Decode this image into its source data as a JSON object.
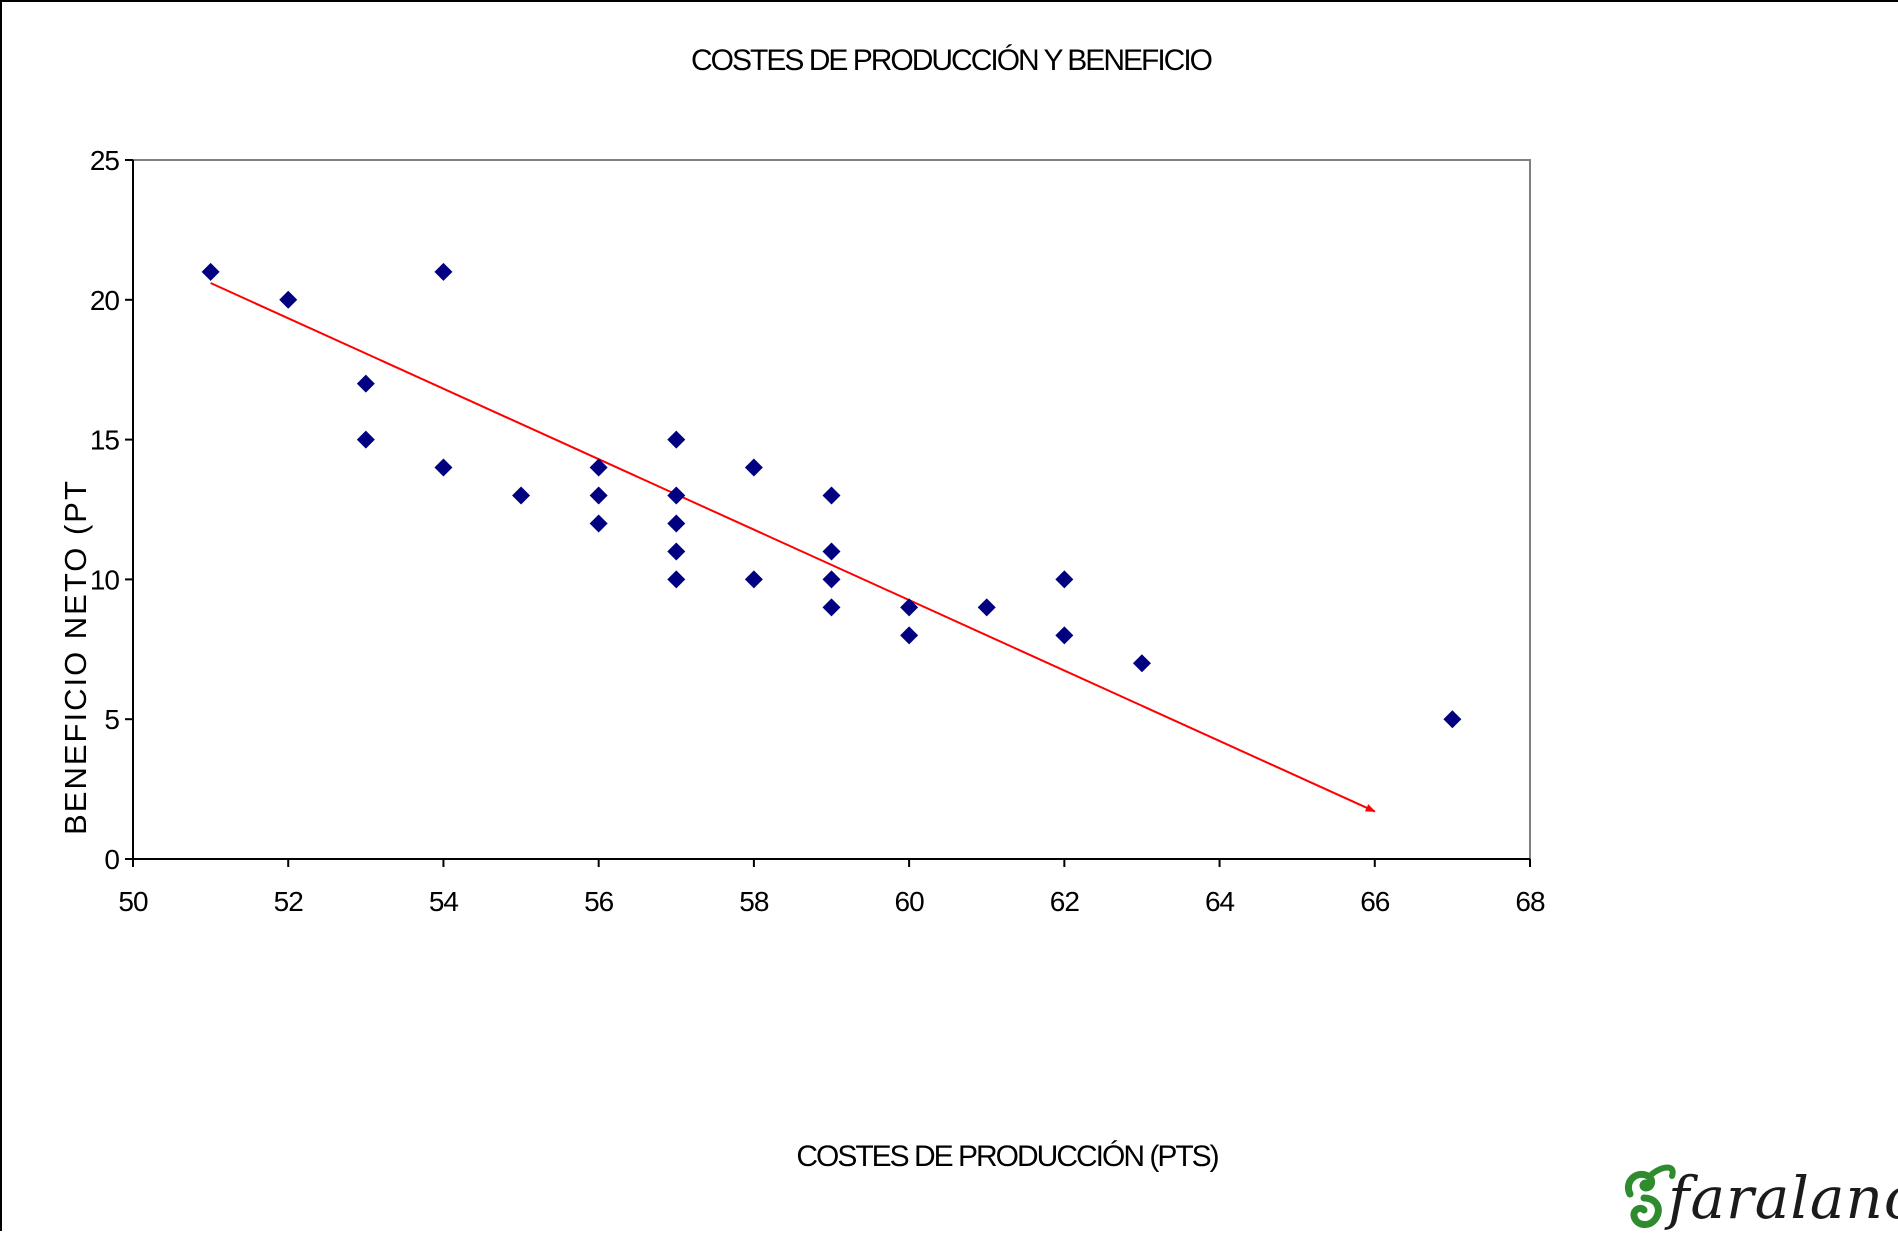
{
  "chart_data": {
    "type": "scatter",
    "title": "COSTES DE PRODUCCIÓN Y BENEFICIO",
    "xlabel": "COSTES DE PRODUCCIÓN (PTS)",
    "ylabel": "BENEFICIO NETO (PT",
    "xlim": [
      50,
      68
    ],
    "ylim": [
      0,
      25
    ],
    "x_ticks": [
      50,
      52,
      54,
      56,
      58,
      60,
      62,
      64,
      66,
      68
    ],
    "y_ticks": [
      0,
      5,
      10,
      15,
      20,
      25
    ],
    "grid": false,
    "marker_color": "#000080",
    "trend_color": "#ff0000",
    "points": [
      {
        "x": 51,
        "y": 21
      },
      {
        "x": 52,
        "y": 20
      },
      {
        "x": 53,
        "y": 17
      },
      {
        "x": 53,
        "y": 15
      },
      {
        "x": 54,
        "y": 21
      },
      {
        "x": 54,
        "y": 14
      },
      {
        "x": 55,
        "y": 13
      },
      {
        "x": 56,
        "y": 14
      },
      {
        "x": 56,
        "y": 13
      },
      {
        "x": 56,
        "y": 12
      },
      {
        "x": 57,
        "y": 15
      },
      {
        "x": 57,
        "y": 13
      },
      {
        "x": 57,
        "y": 12
      },
      {
        "x": 57,
        "y": 11
      },
      {
        "x": 57,
        "y": 10
      },
      {
        "x": 58,
        "y": 14
      },
      {
        "x": 58,
        "y": 10
      },
      {
        "x": 59,
        "y": 13
      },
      {
        "x": 59,
        "y": 11
      },
      {
        "x": 59,
        "y": 10
      },
      {
        "x": 59,
        "y": 9
      },
      {
        "x": 60,
        "y": 9
      },
      {
        "x": 60,
        "y": 8
      },
      {
        "x": 61,
        "y": 9
      },
      {
        "x": 62,
        "y": 10
      },
      {
        "x": 62,
        "y": 8
      },
      {
        "x": 63,
        "y": 7
      },
      {
        "x": 67,
        "y": 5
      }
    ],
    "trend_line": {
      "start": {
        "x": 51,
        "y": 20.6
      },
      "end": {
        "x": 66,
        "y": 1.7
      },
      "arrow": true
    }
  },
  "logo": {
    "text": "faralanc",
    "icon": "swirl-logo-icon",
    "color": "#2e8b2e"
  }
}
